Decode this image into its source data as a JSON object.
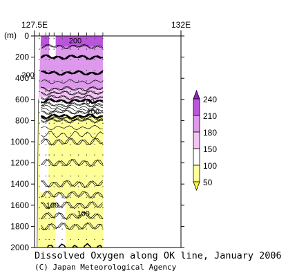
{
  "chart_data": {
    "type": "heatmap",
    "title": "Dissolved Oxygen along OK line, January 2006",
    "credit": "(C) Japan Meteorological Agency",
    "xlabel": "",
    "ylabel": "(m)",
    "x_ticks": [
      "127.5E",
      "132E"
    ],
    "x_range": [
      127.5,
      132
    ],
    "y_ticks": [
      "0",
      "200",
      "400",
      "600",
      "800",
      "1000",
      "1200",
      "1400",
      "1600",
      "1800",
      "2000"
    ],
    "y_range": [
      0,
      2000
    ],
    "station_longitudes": [
      127.65,
      127.85,
      127.95,
      128.1,
      128.35,
      128.6,
      128.85,
      129.1,
      129.35,
      129.6
    ],
    "colorbar": {
      "levels": [
        50,
        100,
        150,
        180,
        210,
        240
      ],
      "labels": [
        "240",
        "210",
        "180",
        "150",
        "100",
        "50"
      ],
      "colors": [
        "#ffff33",
        "#ffff99",
        "#ffffff",
        "#f2c4f4",
        "#dd99ec",
        "#bb55dd",
        "#9922cc"
      ]
    },
    "contour_labels": [
      {
        "text": "200",
        "lon": 128.75,
        "depth": 55
      },
      {
        "text": "200",
        "lon": 127.3,
        "depth": 380
      },
      {
        "text": "150",
        "lon": 129.15,
        "depth": 630
      },
      {
        "text": "100",
        "lon": 129.3,
        "depth": 730
      },
      {
        "text": "100",
        "lon": 128.05,
        "depth": 1610
      },
      {
        "text": "100",
        "lon": 129.0,
        "depth": 1690
      }
    ],
    "profile": [
      {
        "depth": 0,
        "value": 215
      },
      {
        "depth": 100,
        "value": 210
      },
      {
        "depth": 200,
        "value": 200
      },
      {
        "depth": 300,
        "value": 205
      },
      {
        "depth": 400,
        "value": 195
      },
      {
        "depth": 500,
        "value": 180
      },
      {
        "depth": 580,
        "value": 160
      },
      {
        "depth": 650,
        "value": 140
      },
      {
        "depth": 720,
        "value": 110
      },
      {
        "depth": 800,
        "value": 90
      },
      {
        "depth": 1000,
        "value": 75
      },
      {
        "depth": 1200,
        "value": 70
      },
      {
        "depth": 1400,
        "value": 75
      },
      {
        "depth": 1600,
        "value": 85
      },
      {
        "depth": 1800,
        "value": 95
      },
      {
        "depth": 2000,
        "value": 100
      }
    ]
  }
}
